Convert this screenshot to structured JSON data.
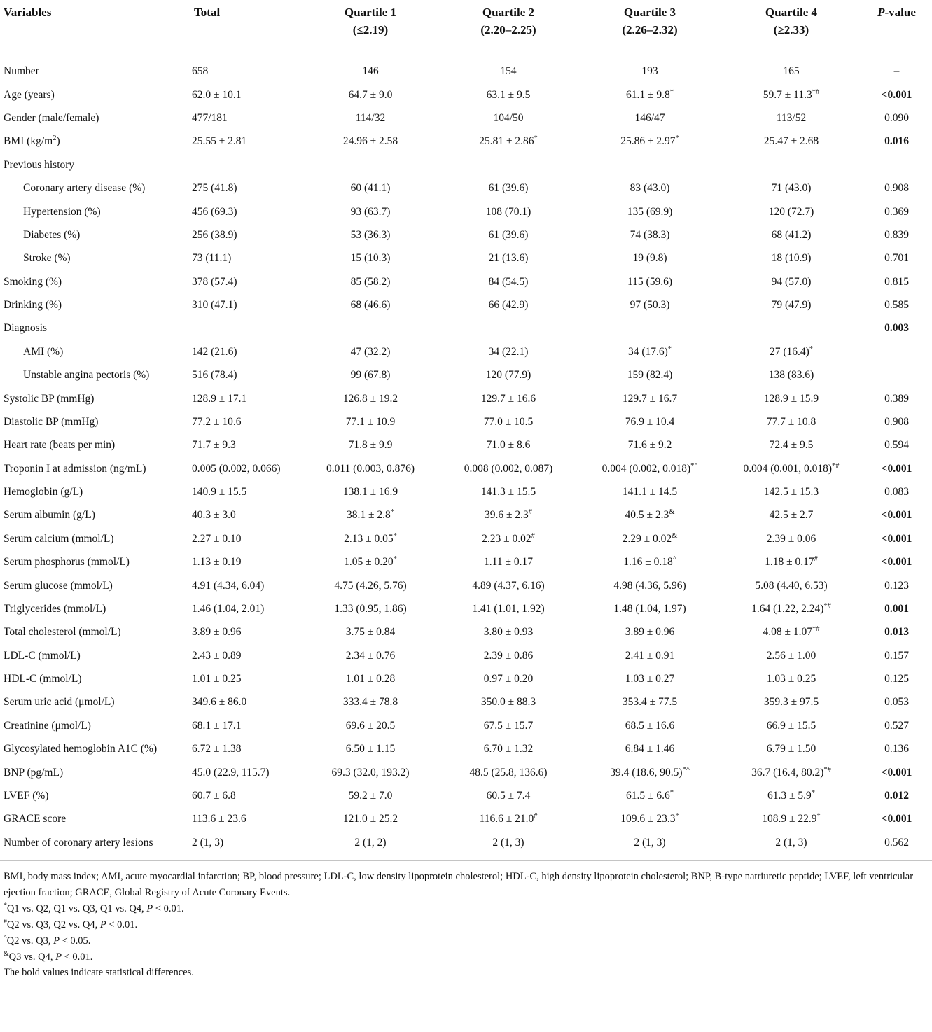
{
  "table": {
    "columns": [
      {
        "label": "Variables",
        "sublabel": ""
      },
      {
        "label": "Total",
        "sublabel": ""
      },
      {
        "label": "Quartile 1",
        "sublabel": "(≤2.19)"
      },
      {
        "label": "Quartile 2",
        "sublabel": "(2.20–2.25)"
      },
      {
        "label": "Quartile 3",
        "sublabel": "(2.26–2.32)"
      },
      {
        "label": "Quartile 4",
        "sublabel": "(≥2.33)"
      },
      {
        "label": "_{P}-value",
        "sublabel": ""
      }
    ],
    "rows": [
      {
        "variable": "Number",
        "cells": [
          "658",
          "146",
          "154",
          "193",
          "165"
        ],
        "p": "–",
        "p_bold": false
      },
      {
        "variable": "Age (years)",
        "cells": [
          "62.0 ± 10.1",
          "64.7 ± 9.0",
          "63.1 ± 9.5",
          "61.1 ± 9.8^{*}",
          "59.7 ± 11.3^{*#}"
        ],
        "p": "<0.001",
        "p_bold": true
      },
      {
        "variable": "Gender (male/female)",
        "cells": [
          "477/181",
          "114/32",
          "104/50",
          "146/47",
          "113/52"
        ],
        "p": "0.090",
        "p_bold": false
      },
      {
        "variable": "BMI (kg/m^{2})",
        "cells": [
          "25.55 ± 2.81",
          "24.96 ± 2.58",
          "25.81 ± 2.86^{*}",
          "25.86 ± 2.97^{*}",
          "25.47 ± 2.68"
        ],
        "p": "0.016",
        "p_bold": true
      },
      {
        "variable": "Previous history",
        "section": true,
        "cells": [
          "",
          "",
          "",
          "",
          ""
        ],
        "p": "",
        "p_bold": false
      },
      {
        "variable": "Coronary artery disease (%)",
        "indent": true,
        "cells": [
          "275 (41.8)",
          "60 (41.1)",
          "61 (39.6)",
          "83 (43.0)",
          "71 (43.0)"
        ],
        "p": "0.908",
        "p_bold": false
      },
      {
        "variable": "Hypertension (%)",
        "indent": true,
        "cells": [
          "456 (69.3)",
          "93 (63.7)",
          "108 (70.1)",
          "135 (69.9)",
          "120 (72.7)"
        ],
        "p": "0.369",
        "p_bold": false
      },
      {
        "variable": "Diabetes (%)",
        "indent": true,
        "cells": [
          "256 (38.9)",
          "53 (36.3)",
          "61 (39.6)",
          "74 (38.3)",
          "68 (41.2)"
        ],
        "p": "0.839",
        "p_bold": false
      },
      {
        "variable": "Stroke (%)",
        "indent": true,
        "cells": [
          "73 (11.1)",
          "15 (10.3)",
          "21 (13.6)",
          "19 (9.8)",
          "18 (10.9)"
        ],
        "p": "0.701",
        "p_bold": false
      },
      {
        "variable": "Smoking (%)",
        "cells": [
          "378 (57.4)",
          "85 (58.2)",
          "84 (54.5)",
          "115 (59.6)",
          "94 (57.0)"
        ],
        "p": "0.815",
        "p_bold": false
      },
      {
        "variable": "Drinking (%)",
        "cells": [
          "310 (47.1)",
          "68 (46.6)",
          "66 (42.9)",
          "97 (50.3)",
          "79 (47.9)"
        ],
        "p": "0.585",
        "p_bold": false
      },
      {
        "variable": "Diagnosis",
        "section": true,
        "cells": [
          "",
          "",
          "",
          "",
          ""
        ],
        "p": "0.003",
        "p_bold": true
      },
      {
        "variable": "AMI (%)",
        "indent": true,
        "cells": [
          "142 (21.6)",
          "47 (32.2)",
          "34 (22.1)",
          "34 (17.6)^{*}",
          "27 (16.4)^{*}"
        ],
        "p": "",
        "p_bold": false
      },
      {
        "variable": "Unstable angina pectoris (%)",
        "indent": true,
        "cells": [
          "516 (78.4)",
          "99 (67.8)",
          "120 (77.9)",
          "159 (82.4)",
          "138 (83.6)"
        ],
        "p": "",
        "p_bold": false
      },
      {
        "variable": "Systolic BP (mmHg)",
        "cells": [
          "128.9 ± 17.1",
          "126.8 ± 19.2",
          "129.7 ± 16.6",
          "129.7 ± 16.7",
          "128.9 ± 15.9"
        ],
        "p": "0.389",
        "p_bold": false
      },
      {
        "variable": "Diastolic BP (mmHg)",
        "cells": [
          "77.2 ± 10.6",
          "77.1 ± 10.9",
          "77.0 ± 10.5",
          "76.9 ± 10.4",
          "77.7 ± 10.8"
        ],
        "p": "0.908",
        "p_bold": false
      },
      {
        "variable": "Heart rate (beats per min)",
        "cells": [
          "71.7 ± 9.3",
          "71.8 ± 9.9",
          "71.0 ± 8.6",
          "71.6 ± 9.2",
          "72.4 ± 9.5"
        ],
        "p": "0.594",
        "p_bold": false
      },
      {
        "variable": "Troponin I at admission (ng/mL)",
        "cells": [
          "0.005 (0.002, 0.066)",
          "0.011 (0.003, 0.876)",
          "0.008 (0.002, 0.087)",
          "0.004 (0.002, 0.018)^{*^}",
          "0.004 (0.001, 0.018)^{*#}"
        ],
        "p": "<0.001",
        "p_bold": true
      },
      {
        "variable": "Hemoglobin (g/L)",
        "cells": [
          "140.9 ± 15.5",
          "138.1 ± 16.9",
          "141.3 ± 15.5",
          "141.1 ± 14.5",
          "142.5 ± 15.3"
        ],
        "p": "0.083",
        "p_bold": false
      },
      {
        "variable": "Serum albumin (g/L)",
        "cells": [
          "40.3 ± 3.0",
          "38.1 ± 2.8^{*}",
          "39.6 ± 2.3^{#}",
          "40.5 ± 2.3^{&}",
          "42.5 ± 2.7"
        ],
        "p": "<0.001",
        "p_bold": true
      },
      {
        "variable": "Serum calcium (mmol/L)",
        "cells": [
          "2.27 ± 0.10",
          "2.13 ± 0.05^{*}",
          "2.23 ± 0.02^{#}",
          "2.29 ± 0.02^{&}",
          "2.39 ± 0.06"
        ],
        "p": "<0.001",
        "p_bold": true
      },
      {
        "variable": "Serum phosphorus (mmol/L)",
        "cells": [
          "1.13 ± 0.19",
          "1.05 ± 0.20^{*}",
          "1.11 ± 0.17",
          "1.16 ± 0.18^{^}",
          "1.18 ± 0.17^{#}"
        ],
        "p": "<0.001",
        "p_bold": true
      },
      {
        "variable": "Serum glucose (mmol/L)",
        "cells": [
          "4.91 (4.34, 6.04)",
          "4.75 (4.26, 5.76)",
          "4.89 (4.37, 6.16)",
          "4.98 (4.36, 5.96)",
          "5.08 (4.40, 6.53)"
        ],
        "p": "0.123",
        "p_bold": false
      },
      {
        "variable": "Triglycerides (mmol/L)",
        "cells": [
          "1.46 (1.04, 2.01)",
          "1.33 (0.95, 1.86)",
          "1.41 (1.01, 1.92)",
          "1.48 (1.04, 1.97)",
          "1.64 (1.22, 2.24)^{*#}"
        ],
        "p": "0.001",
        "p_bold": true
      },
      {
        "variable": "Total cholesterol (mmol/L)",
        "cells": [
          "3.89 ± 0.96",
          "3.75 ± 0.84",
          "3.80 ± 0.93",
          "3.89 ± 0.96",
          "4.08 ± 1.07^{*#}"
        ],
        "p": "0.013",
        "p_bold": true
      },
      {
        "variable": "LDL-C (mmol/L)",
        "cells": [
          "2.43 ± 0.89",
          "2.34 ± 0.76",
          "2.39 ± 0.86",
          "2.41 ± 0.91",
          "2.56 ± 1.00"
        ],
        "p": "0.157",
        "p_bold": false
      },
      {
        "variable": "HDL-C (mmol/L)",
        "cells": [
          "1.01 ± 0.25",
          "1.01 ± 0.28",
          "0.97 ± 0.20",
          "1.03 ± 0.27",
          "1.03 ± 0.25"
        ],
        "p": "0.125",
        "p_bold": false
      },
      {
        "variable": "Serum uric acid (μmol/L)",
        "cells": [
          "349.6 ± 86.0",
          "333.4 ± 78.8",
          "350.0 ± 88.3",
          "353.4 ± 77.5",
          "359.3 ± 97.5"
        ],
        "p": "0.053",
        "p_bold": false
      },
      {
        "variable": "Creatinine (μmol/L)",
        "cells": [
          "68.1 ± 17.1",
          "69.6 ± 20.5",
          "67.5 ± 15.7",
          "68.5 ± 16.6",
          "66.9 ± 15.5"
        ],
        "p": "0.527",
        "p_bold": false
      },
      {
        "variable": "Glycosylated hemoglobin A1C (%)",
        "cells": [
          "6.72 ± 1.38",
          "6.50 ± 1.15",
          "6.70 ± 1.32",
          "6.84 ± 1.46",
          "6.79 ± 1.50"
        ],
        "p": "0.136",
        "p_bold": false
      },
      {
        "variable": "BNP (pg/mL)",
        "cells": [
          "45.0 (22.9, 115.7)",
          "69.3 (32.0, 193.2)",
          "48.5 (25.8, 136.6)",
          "39.4 (18.6, 90.5)^{*^}",
          "36.7 (16.4, 80.2)^{*#}"
        ],
        "p": "<0.001",
        "p_bold": true
      },
      {
        "variable": "LVEF (%)",
        "cells": [
          "60.7 ± 6.8",
          "59.2 ± 7.0",
          "60.5 ± 7.4",
          "61.5 ± 6.6^{*}",
          "61.3 ± 5.9^{*}"
        ],
        "p": "0.012",
        "p_bold": true
      },
      {
        "variable": "GRACE score",
        "cells": [
          "113.6 ± 23.6",
          "121.0 ± 25.2",
          "116.6 ± 21.0^{#}",
          "109.6 ± 23.3^{*}",
          "108.9 ± 22.9^{*}"
        ],
        "p": "<0.001",
        "p_bold": true
      },
      {
        "variable": "Number of coronary artery lesions",
        "cells": [
          "2 (1, 3)",
          "2 (1, 2)",
          "2 (1, 3)",
          "2 (1, 3)",
          "2 (1, 3)"
        ],
        "p": "0.562",
        "p_bold": false
      }
    ],
    "footnotes": [
      {
        "marker": "",
        "text": "BMI, body mass index; AMI, acute myocardial infarction; BP, blood pressure; LDL-C, low density lipoprotein cholesterol; HDL-C, high density lipoprotein cholesterol; BNP, B-type natriuretic peptide; LVEF, left ventricular ejection fraction; GRACE, Global Registry of Acute Coronary Events."
      },
      {
        "marker": "*",
        "text": "Q1 vs. Q2, Q1 vs. Q3, Q1 vs. Q4, _{P} < 0.01."
      },
      {
        "marker": "#",
        "text": "Q2 vs. Q3, Q2 vs. Q4, _{P} < 0.01."
      },
      {
        "marker": "^",
        "text": "Q2 vs. Q3, _{P} < 0.05."
      },
      {
        "marker": "&",
        "text": "Q3 vs. Q4, _{P} < 0.01."
      },
      {
        "marker": "",
        "text": "The bold values indicate statistical differences."
      }
    ]
  }
}
